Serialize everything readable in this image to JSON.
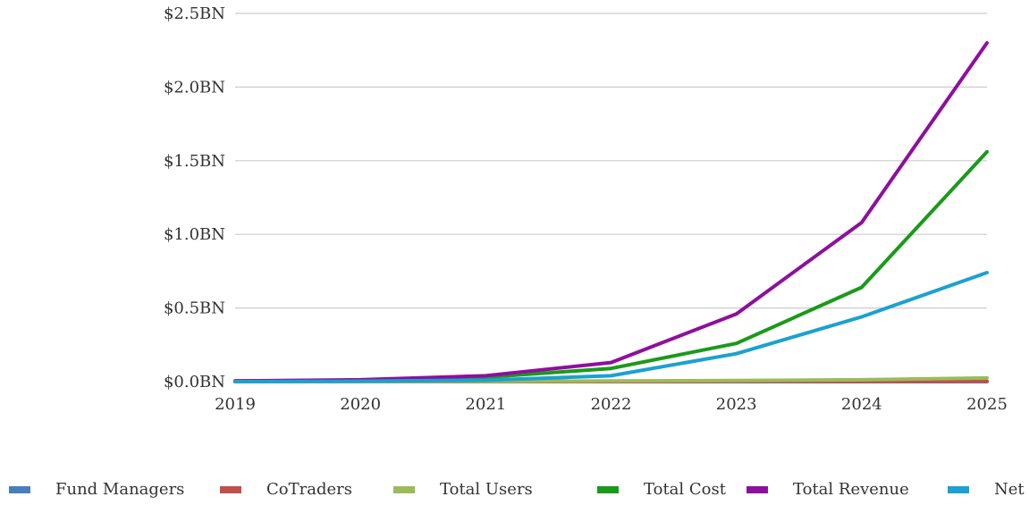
{
  "chart_data": {
    "type": "line",
    "title": "",
    "xlabel": "",
    "ylabel": "",
    "categories": [
      "2019",
      "2020",
      "2021",
      "2022",
      "2023",
      "2024",
      "2025"
    ],
    "y_tick_labels": [
      "$0.0BN",
      "$0.5BN",
      "$1.0BN",
      "$1.5BN",
      "$2.0BN",
      "$2.5BN"
    ],
    "ylim": [
      0,
      2.5
    ],
    "y_unit": "BN",
    "grid": true,
    "legend_position": "bottom",
    "series": [
      {
        "name": "Fund Managers",
        "color": "#4a7ebb",
        "values": [
          0,
          0,
          0,
          0,
          0,
          0,
          0
        ]
      },
      {
        "name": "CoTraders",
        "color": "#c0504d",
        "values": [
          0,
          0,
          0,
          0,
          0.001,
          0.002,
          0.003
        ]
      },
      {
        "name": "Total Users",
        "color": "#9bbb59",
        "values": [
          0,
          0,
          0.002,
          0.004,
          0.008,
          0.013,
          0.025
        ]
      },
      {
        "name": "Total Cost",
        "color": "#1a9a1a",
        "values": [
          0.005,
          0.01,
          0.03,
          0.09,
          0.26,
          0.64,
          1.56
        ]
      },
      {
        "name": "Total Revenue",
        "color": "#8e0f9e",
        "values": [
          0.005,
          0.013,
          0.04,
          0.13,
          0.46,
          1.08,
          2.3
        ]
      },
      {
        "name": "Net",
        "color": "#1ba1d0",
        "values": [
          0,
          0.003,
          0.01,
          0.04,
          0.19,
          0.44,
          0.74
        ]
      }
    ]
  }
}
